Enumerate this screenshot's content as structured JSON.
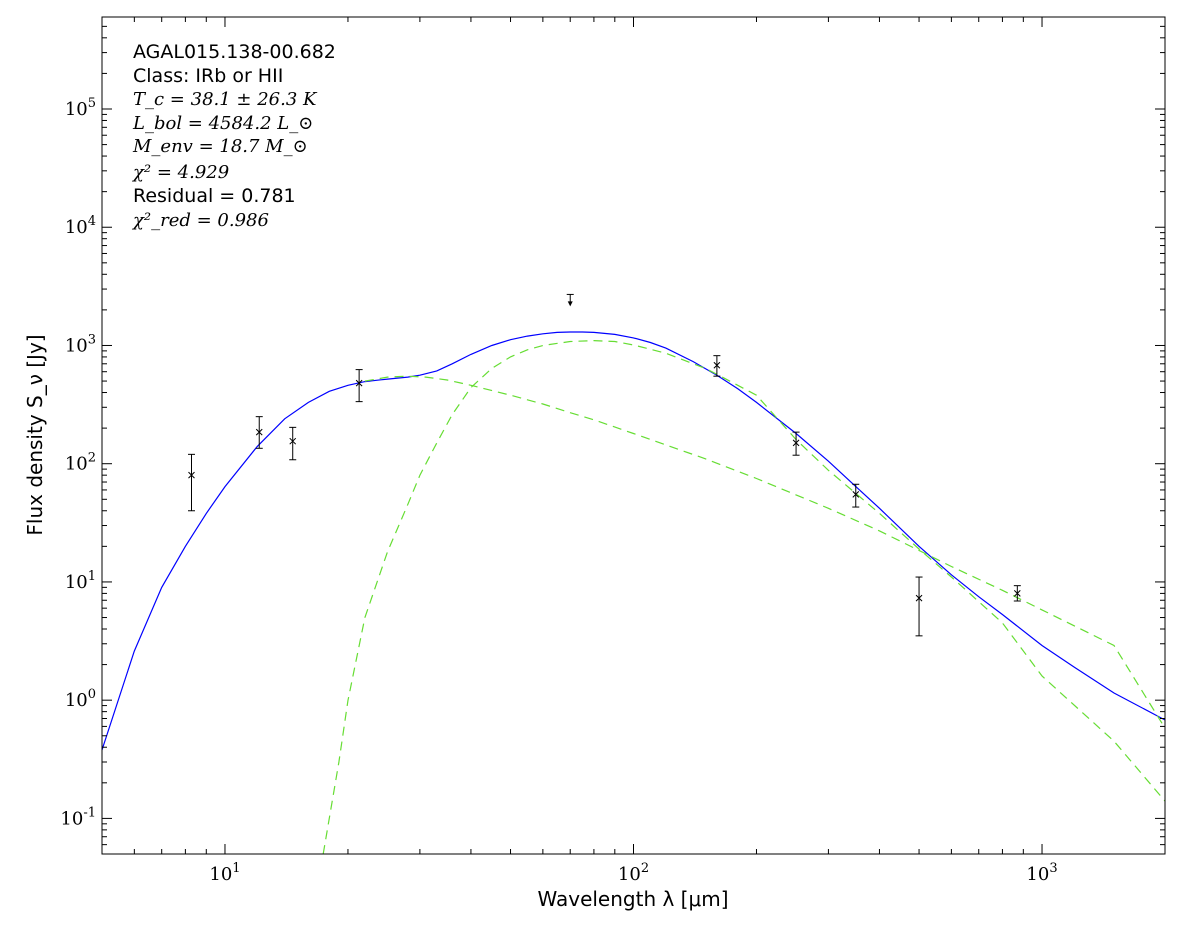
{
  "chart_data": {
    "type": "scatter",
    "title": "",
    "xlabel": "Wavelength λ [μm]",
    "ylabel": "Flux density S_ν [Jy]",
    "x_scale": "log",
    "y_scale": "log",
    "xlim": [
      5,
      2000
    ],
    "ylim": [
      0.05,
      600000
    ],
    "grid": false,
    "x_tick_labels": [
      "10^1",
      "10^2",
      "10^3"
    ],
    "y_tick_labels": [
      "10^-1",
      "10^0",
      "10^1",
      "10^2",
      "10^3",
      "10^4",
      "10^5"
    ],
    "annotations": {
      "source": "AGAL015.138-00.682",
      "class": "Class: IRb or HII",
      "tc": "T_c = 38.1 ± 26.3 K",
      "lbol": "L_bol = 4584.2 L_⊙",
      "menv": "M_env = 18.7 M_⊙",
      "chi2": "χ² = 4.929",
      "residual": "Residual = 0.781",
      "chi2red": "χ²_red = 0.986"
    },
    "measurements": [
      {
        "x": 8.28,
        "y": 80,
        "err": [
          40,
          120
        ]
      },
      {
        "x": 12.13,
        "y": 185,
        "err": [
          135,
          250
        ]
      },
      {
        "x": 14.65,
        "y": 155,
        "err": [
          108,
          203
        ]
      },
      {
        "x": 21.3,
        "y": 480,
        "err": [
          335,
          625
        ]
      },
      {
        "x": 160,
        "y": 680,
        "err": [
          550,
          820
        ]
      },
      {
        "x": 250,
        "y": 150,
        "err": [
          118,
          185
        ]
      },
      {
        "x": 350,
        "y": 55,
        "err": [
          43,
          67
        ]
      },
      {
        "x": 500,
        "y": 7.3,
        "err": [
          3.5,
          11
        ]
      },
      {
        "x": 870,
        "y": 8,
        "err": [
          6.9,
          9.3
        ]
      }
    ],
    "upper_limits": [
      {
        "x": 70,
        "y": 2500
      }
    ],
    "series": [
      {
        "name": "",
        "style": "solid",
        "color": "#0000ff",
        "x": [
          5,
          6,
          7,
          8,
          9,
          10,
          12,
          14,
          16,
          18,
          20,
          22,
          25,
          28,
          30,
          33,
          36,
          40,
          45,
          50,
          55,
          60,
          65,
          70,
          75,
          80,
          90,
          100,
          110,
          120,
          140,
          160,
          180,
          200,
          250,
          300,
          350,
          400,
          500,
          600,
          700,
          800,
          1000,
          1200,
          1500,
          2000
        ],
        "y": [
          0.38,
          2.6,
          9,
          20,
          38,
          64,
          140,
          240,
          330,
          410,
          460,
          495,
          520,
          540,
          560,
          610,
          700,
          840,
          1000,
          1120,
          1200,
          1255,
          1290,
          1300,
          1300,
          1290,
          1240,
          1160,
          1060,
          950,
          730,
          560,
          430,
          330,
          180,
          105,
          64,
          42,
          20,
          11.5,
          7.5,
          5.3,
          2.9,
          1.9,
          1.15,
          0.68
        ]
      },
      {
        "name": "",
        "style": "dashed",
        "color": "#66dd33",
        "x": [
          22,
          25,
          28,
          31,
          35,
          40,
          50,
          60,
          70,
          80,
          100,
          150,
          200,
          300,
          400,
          500,
          600,
          800,
          1000,
          1500,
          2000
        ],
        "y": [
          500,
          540,
          550,
          540,
          510,
          460,
          380,
          320,
          270,
          235,
          180,
          110,
          75,
          42,
          27,
          18.5,
          13.5,
          8.5,
          5.8,
          2.9,
          0.58
        ]
      },
      {
        "name": "",
        "style": "dashed",
        "color": "#66dd33",
        "x": [
          17.4,
          19,
          20,
          22,
          25,
          28,
          30,
          33,
          36,
          40,
          45,
          50,
          55,
          60,
          70,
          80,
          90,
          100,
          120,
          150,
          160,
          200,
          250,
          300,
          400,
          500,
          600,
          800,
          1000,
          1500,
          2000
        ],
        "y": [
          0.05,
          0.3,
          1,
          5,
          18,
          45,
          80,
          150,
          260,
          440,
          640,
          800,
          920,
          1000,
          1080,
          1100,
          1080,
          1010,
          860,
          640,
          570,
          380,
          160,
          88,
          38,
          19,
          11,
          4.5,
          1.6,
          0.45,
          0.14
        ]
      }
    ]
  }
}
